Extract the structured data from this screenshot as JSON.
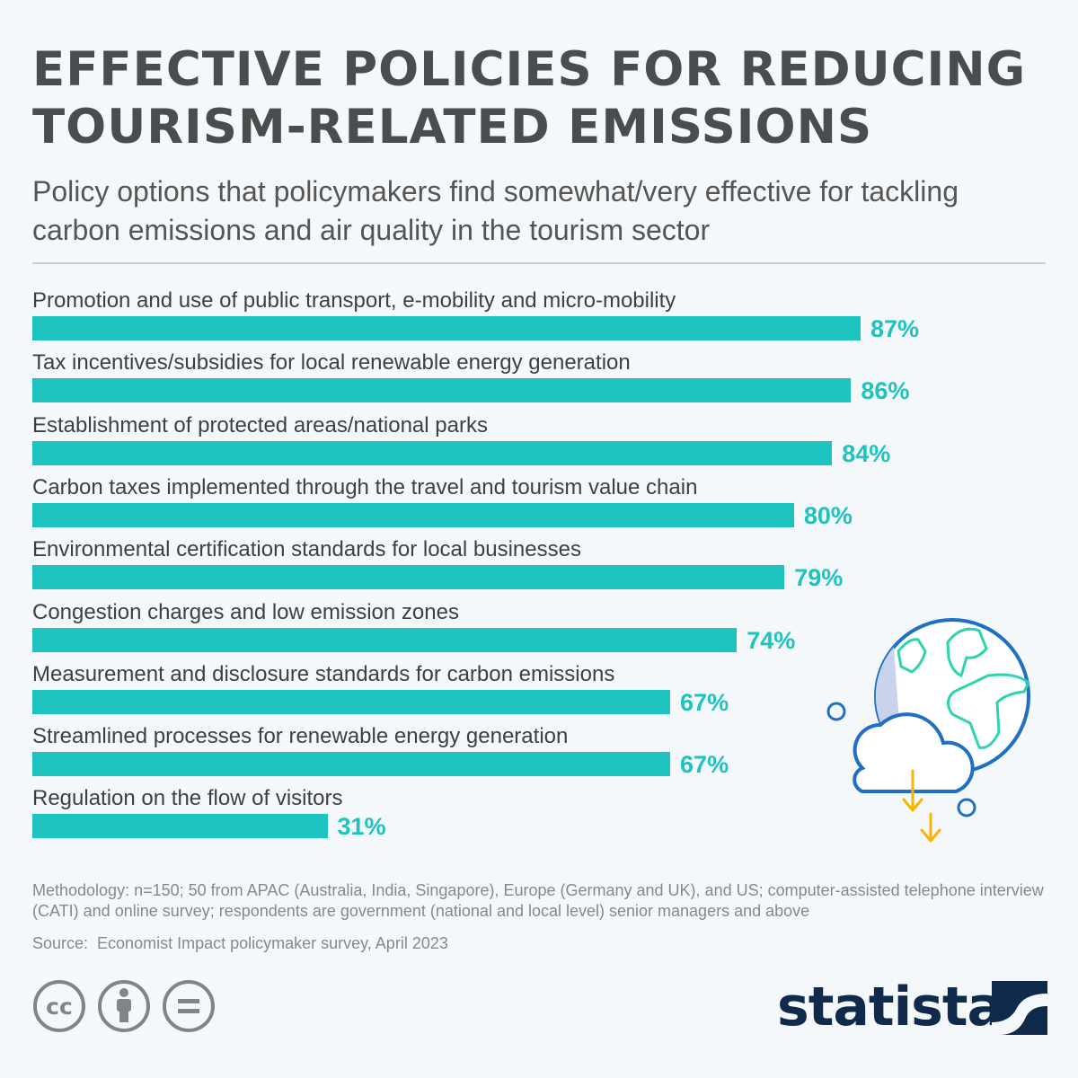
{
  "header": {
    "title": "EFFECTIVE POLICIES FOR REDUCING TOURISM-RELATED EMISSIONS",
    "subtitle": "Policy options that policymakers find somewhat/very effective for tackling carbon emissions and air quality in the tourism sector"
  },
  "chart_data": {
    "type": "bar",
    "orientation": "horizontal",
    "categories": [
      "Promotion and use of public transport, e-mobility and micro-mobility",
      "Tax incentives/subsidies for local renewable energy generation",
      "Establishment of protected areas/national parks",
      "Carbon taxes implemented through the travel and tourism value chain",
      "Environmental certification standards for local businesses",
      "Congestion charges and low emission zones",
      "Measurement and disclosure standards for carbon emissions",
      "Streamlined processes for renewable energy generation",
      "Regulation on the flow of visitors"
    ],
    "values": [
      87,
      86,
      84,
      80,
      79,
      74,
      67,
      67,
      31
    ],
    "value_labels": [
      "87%",
      "86%",
      "84%",
      "80%",
      "79%",
      "74%",
      "67%",
      "67%",
      "31%"
    ],
    "xlim": [
      0,
      100
    ],
    "unit": "%",
    "bar_color": "#1cc3bf",
    "grid": false
  },
  "footer": {
    "methodology": "Methodology: n=150; 50 from APAC (Australia, India, Singapore), Europe (Germany and UK), and US; computer-assisted telephone interview (CATI) and online survey; respondents are government (national and local level) senior managers and above",
    "source": "Source:  Economist Impact policymaker survey, April 2023",
    "brand": "statista",
    "license_icons": [
      "cc-icon",
      "attribution-icon",
      "no-derivatives-icon"
    ]
  },
  "colors": {
    "background": "#f4f8fb",
    "title": "#4a4d4e",
    "accent": "#1cc3bf",
    "brand": "#0f2a4a"
  }
}
